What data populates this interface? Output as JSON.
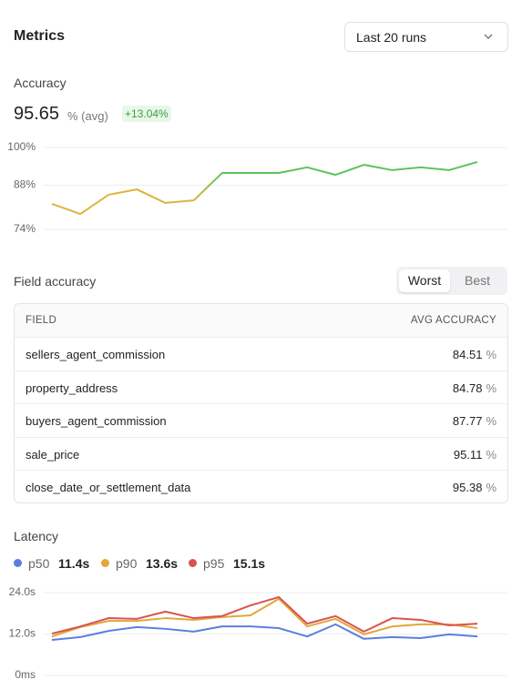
{
  "header": {
    "title": "Metrics",
    "dropdown": "Last 20 runs"
  },
  "accuracy": {
    "title": "Accuracy",
    "value": 95.65,
    "unit": "% (avg)",
    "change": "+13.04%",
    "chart_data": {
      "type": "line",
      "ylim": [
        74,
        100
      ],
      "yticks": [
        {
          "value": 100,
          "label": "100%"
        },
        {
          "value": 88,
          "label": "88%"
        },
        {
          "value": 74,
          "label": "74%"
        }
      ],
      "grid": true,
      "threshold": 88,
      "colors": {
        "below": "#dcb53c",
        "above": "#5cc25c"
      },
      "values": [
        82.1,
        78.9,
        85,
        86.7,
        82.4,
        83.2,
        91.9,
        91.9,
        91.9,
        93.7,
        91.3,
        94.5,
        92.8,
        93.7,
        92.8,
        95.4
      ]
    }
  },
  "field_accuracy": {
    "title": "Field accuracy",
    "toggle": {
      "options": [
        "Worst",
        "Best"
      ],
      "selected": 0
    },
    "table": {
      "headers": [
        "FIELD",
        "AVG ACCURACY"
      ],
      "unit": "%",
      "rows": [
        {
          "field": "sellers_agent_commission",
          "value": 84.51
        },
        {
          "field": "property_address",
          "value": 84.78
        },
        {
          "field": "buyers_agent_commission",
          "value": 87.77
        },
        {
          "field": "sale_price",
          "value": 95.11
        },
        {
          "field": "close_date_or_settlement_data",
          "value": 95.38
        }
      ]
    }
  },
  "latency": {
    "title": "Latency",
    "chart_data": {
      "type": "line",
      "ylim": [
        0,
        24
      ],
      "yticks": [
        {
          "value": 24,
          "label": "24.0s"
        },
        {
          "value": 12,
          "label": "12.0s"
        },
        {
          "value": 0,
          "label": "0ms"
        }
      ],
      "grid": true,
      "series": [
        {
          "name": "p50",
          "color": "#5b7fe0",
          "summary": "11.4s",
          "values": [
            10.3,
            11.1,
            12.9,
            14.0,
            13.5,
            12.7,
            14.2,
            14.2,
            13.7,
            11.3,
            14.8,
            10.6,
            11.1,
            10.8,
            11.9,
            11.3
          ]
        },
        {
          "name": "p90",
          "color": "#e3a63a",
          "summary": "13.6s",
          "values": [
            11.3,
            14.0,
            15.8,
            15.8,
            16.6,
            16.1,
            16.9,
            17.4,
            22.2,
            14.2,
            16.4,
            11.9,
            14.2,
            14.8,
            14.8,
            13.7
          ]
        },
        {
          "name": "p95",
          "color": "#d9534f",
          "summary": "15.1s",
          "values": [
            12.1,
            14.2,
            16.6,
            16.4,
            18.5,
            16.6,
            17.2,
            20.3,
            22.7,
            15.0,
            17.2,
            12.7,
            16.6,
            16.1,
            14.5,
            15.0
          ]
        }
      ]
    }
  }
}
